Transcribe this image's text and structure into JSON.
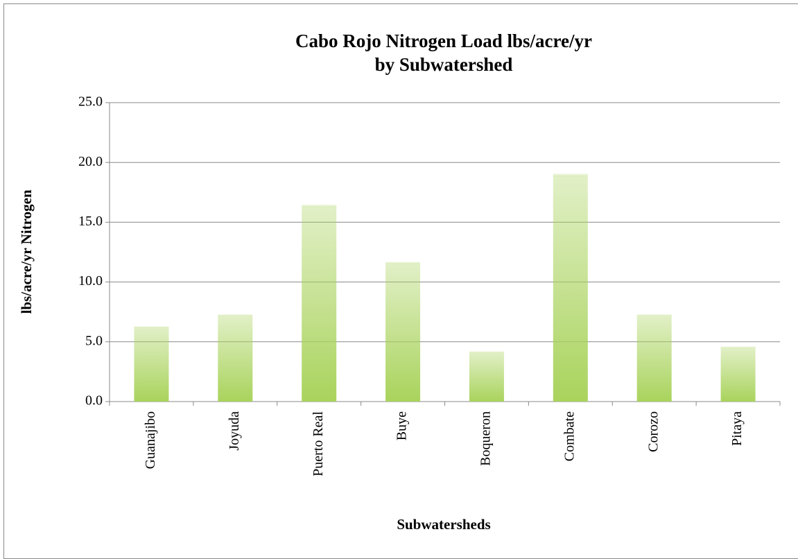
{
  "chart_data": {
    "type": "bar",
    "title": [
      "Cabo Rojo Nitrogen Load lbs/acre/yr",
      "by Subwatershed"
    ],
    "x_label": "Subwatersheds",
    "y_label": "lbs/acre/yr Nitrogen",
    "categories": [
      "Guanajibo",
      "Joyuda",
      "Puerto Real",
      "Buye",
      "Boqueron",
      "Combate",
      "Corozo",
      "Pitaya"
    ],
    "values": [
      6.3,
      7.3,
      16.5,
      11.7,
      4.2,
      19.1,
      7.3,
      4.6
    ],
    "color": "#a9d35c",
    "ylim": [
      0,
      25
    ],
    "yticks": [
      {
        "value": 0,
        "label": "0.0"
      },
      {
        "value": 5,
        "label": "5.0"
      },
      {
        "value": 10,
        "label": "10.0"
      },
      {
        "value": 15,
        "label": "15.0"
      },
      {
        "value": 20,
        "label": "20.0"
      },
      {
        "value": 25,
        "label": "25.0"
      }
    ],
    "grid": true
  }
}
